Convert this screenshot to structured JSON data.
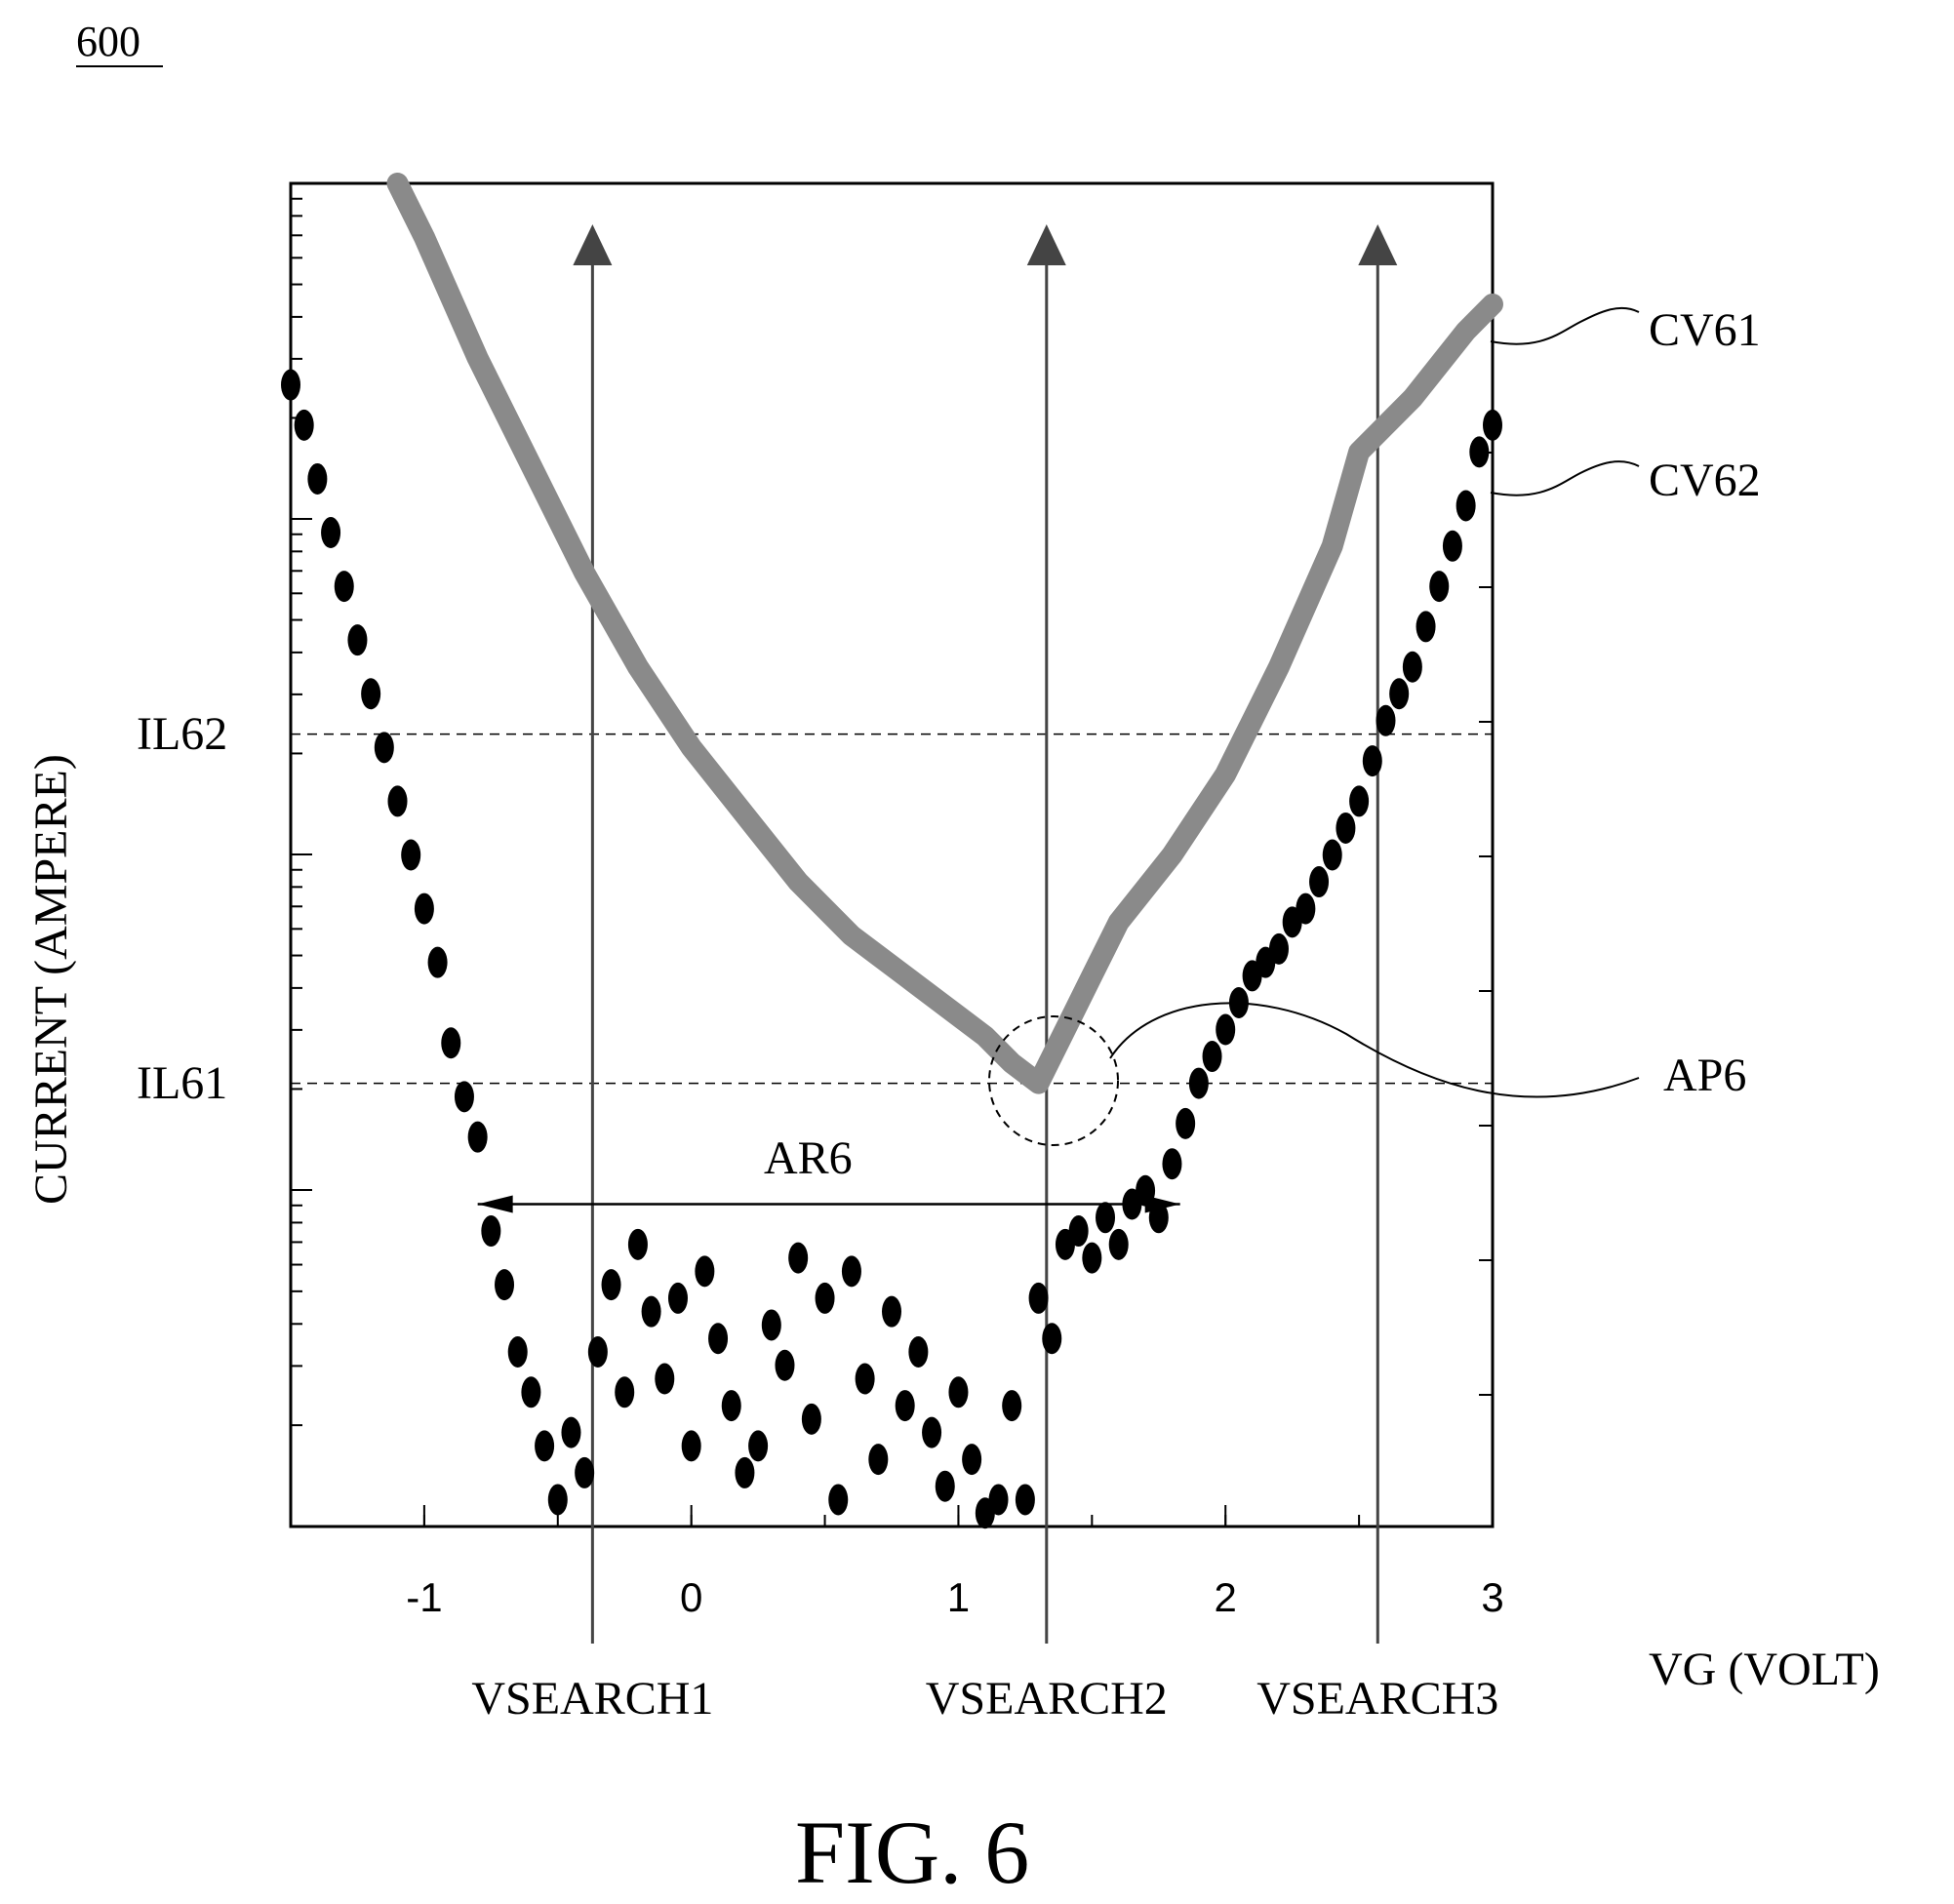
{
  "figure": {
    "number_label": "600",
    "caption": "FIG. 6"
  },
  "chart_data": {
    "type": "line",
    "title": "",
    "xlabel": "VG (VOLT)",
    "ylabel": "CURRENT (AMPERE)",
    "xlim": [
      -1.5,
      3.0
    ],
    "ylim": [
      0,
      1
    ],
    "x_ticks": [
      -1,
      0,
      1,
      2,
      3
    ],
    "x_tick_labels": [
      "-1",
      "0",
      "1",
      "2",
      "3"
    ],
    "y_scale": "log",
    "grid": false,
    "legend": "none",
    "series": [
      {
        "name": "CV61",
        "color": "#8a8a8a",
        "style": "thick-line",
        "x": [
          -1.1,
          -1.0,
          -0.8,
          -0.6,
          -0.4,
          -0.2,
          0.0,
          0.2,
          0.4,
          0.6,
          0.8,
          1.0,
          1.1,
          1.2,
          1.3,
          1.4,
          1.5,
          1.6,
          1.8,
          2.0,
          2.2,
          2.4,
          2.5,
          2.7,
          2.9,
          3.0
        ],
        "y": [
          1.0,
          0.96,
          0.87,
          0.79,
          0.71,
          0.64,
          0.58,
          0.53,
          0.48,
          0.44,
          0.41,
          0.38,
          0.365,
          0.345,
          0.33,
          0.37,
          0.41,
          0.45,
          0.5,
          0.56,
          0.64,
          0.73,
          0.8,
          0.84,
          0.89,
          0.91
        ]
      },
      {
        "name": "CV62",
        "color": "#000000",
        "style": "dots",
        "x": [
          -1.5,
          -1.45,
          -1.4,
          -1.35,
          -1.3,
          -1.25,
          -1.2,
          -1.15,
          -1.1,
          -1.05,
          -1.0,
          -0.95,
          -0.9,
          -0.85,
          -0.8,
          -0.75,
          -0.7,
          -0.65,
          -0.6,
          -0.55,
          -0.5,
          -0.45,
          -0.4,
          -0.35,
          -0.3,
          -0.25,
          -0.2,
          -0.15,
          -0.1,
          -0.05,
          0.0,
          0.05,
          0.1,
          0.15,
          0.2,
          0.25,
          0.3,
          0.35,
          0.4,
          0.45,
          0.5,
          0.55,
          0.6,
          0.65,
          0.7,
          0.75,
          0.8,
          0.85,
          0.9,
          0.95,
          1.0,
          1.05,
          1.1,
          1.15,
          1.2,
          1.25,
          1.3,
          1.35,
          1.4,
          1.45,
          1.5,
          1.55,
          1.6,
          1.65,
          1.7,
          1.75,
          1.8,
          1.85,
          1.9,
          1.95,
          2.0,
          2.05,
          2.1,
          2.15,
          2.2,
          2.25,
          2.3,
          2.35,
          2.4,
          2.45,
          2.5,
          2.55,
          2.6,
          2.65,
          2.7,
          2.75,
          2.8,
          2.85,
          2.9,
          2.95,
          3.0
        ],
        "y": [
          0.85,
          0.82,
          0.78,
          0.74,
          0.7,
          0.66,
          0.62,
          0.58,
          0.54,
          0.5,
          0.46,
          0.42,
          0.36,
          0.32,
          0.29,
          0.22,
          0.18,
          0.13,
          0.1,
          0.06,
          0.02,
          0.07,
          0.04,
          0.13,
          0.18,
          0.1,
          0.21,
          0.16,
          0.11,
          0.17,
          0.06,
          0.19,
          0.14,
          0.09,
          0.04,
          0.06,
          0.15,
          0.12,
          0.2,
          0.08,
          0.17,
          0.02,
          0.19,
          0.11,
          0.05,
          0.16,
          0.09,
          0.13,
          0.07,
          0.03,
          0.1,
          0.05,
          0.01,
          0.02,
          0.09,
          0.02,
          0.17,
          0.14,
          0.21,
          0.22,
          0.2,
          0.23,
          0.21,
          0.24,
          0.25,
          0.23,
          0.27,
          0.3,
          0.33,
          0.35,
          0.37,
          0.39,
          0.41,
          0.42,
          0.43,
          0.45,
          0.46,
          0.48,
          0.5,
          0.52,
          0.54,
          0.57,
          0.6,
          0.62,
          0.64,
          0.67,
          0.7,
          0.73,
          0.76,
          0.8,
          0.82
        ]
      }
    ],
    "vertical_lines": [
      {
        "label": "VSEARCH1",
        "x": -0.37
      },
      {
        "label": "VSEARCH2",
        "x": 1.33
      },
      {
        "label": "VSEARCH3",
        "x": 2.57
      }
    ],
    "horizontal_lines": [
      {
        "label": "IL62",
        "y": 0.59
      },
      {
        "label": "IL61",
        "y": 0.33
      }
    ],
    "annotations": {
      "curve_labels": [
        "CV61",
        "CV62"
      ],
      "point_label": "AP6",
      "point_x": 1.33,
      "point_y": 0.33,
      "range_label": "AR6",
      "range_x": [
        -0.8,
        1.83
      ],
      "range_y": 0.24
    }
  }
}
